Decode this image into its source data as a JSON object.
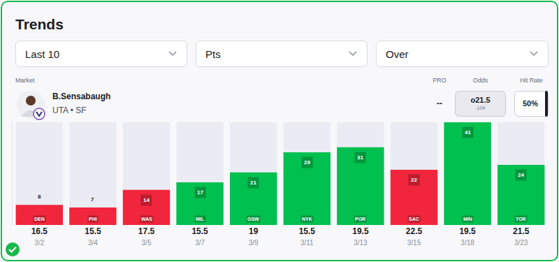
{
  "header": {
    "title": "Trends",
    "filters": [
      "Last 10",
      "Pts",
      "Over"
    ],
    "market_label": "Market",
    "columns": [
      "PRO",
      "Odds",
      "Hit Rate"
    ]
  },
  "player": {
    "name": "B.Sensabaugh",
    "team": "UTA • SF",
    "pro": "--",
    "odds": "o21.5",
    "price": "-104",
    "hit_rate": "50%"
  },
  "chart_data": {
    "type": "bar",
    "categories": [
      "DEN",
      "PHI",
      "WAS",
      "MIL",
      "GSW",
      "NYK",
      "POR",
      "SAC",
      "MIN",
      "TOR"
    ],
    "values": [
      8,
      7,
      14,
      17,
      21,
      29,
      31,
      22,
      41,
      24
    ],
    "colors": [
      "#f1253b",
      "#f1253b",
      "#f1253b",
      "#00c04f",
      "#00c04f",
      "#00c04f",
      "#00c04f",
      "#f1253b",
      "#00c04f",
      "#00c04f"
    ],
    "lines": [
      16.5,
      15.5,
      17.5,
      15.5,
      19,
      15.5,
      19.5,
      22.5,
      19.5,
      21.5
    ],
    "dates": [
      "3/2",
      "3/4",
      "3/5",
      "3/7",
      "3/9",
      "3/11",
      "3/13",
      "3/15",
      "3/18",
      "3/23"
    ],
    "ylim": [
      0,
      41
    ],
    "yticks": [],
    "grid": false,
    "data_labels": true,
    "tick_labels": "x"
  }
}
